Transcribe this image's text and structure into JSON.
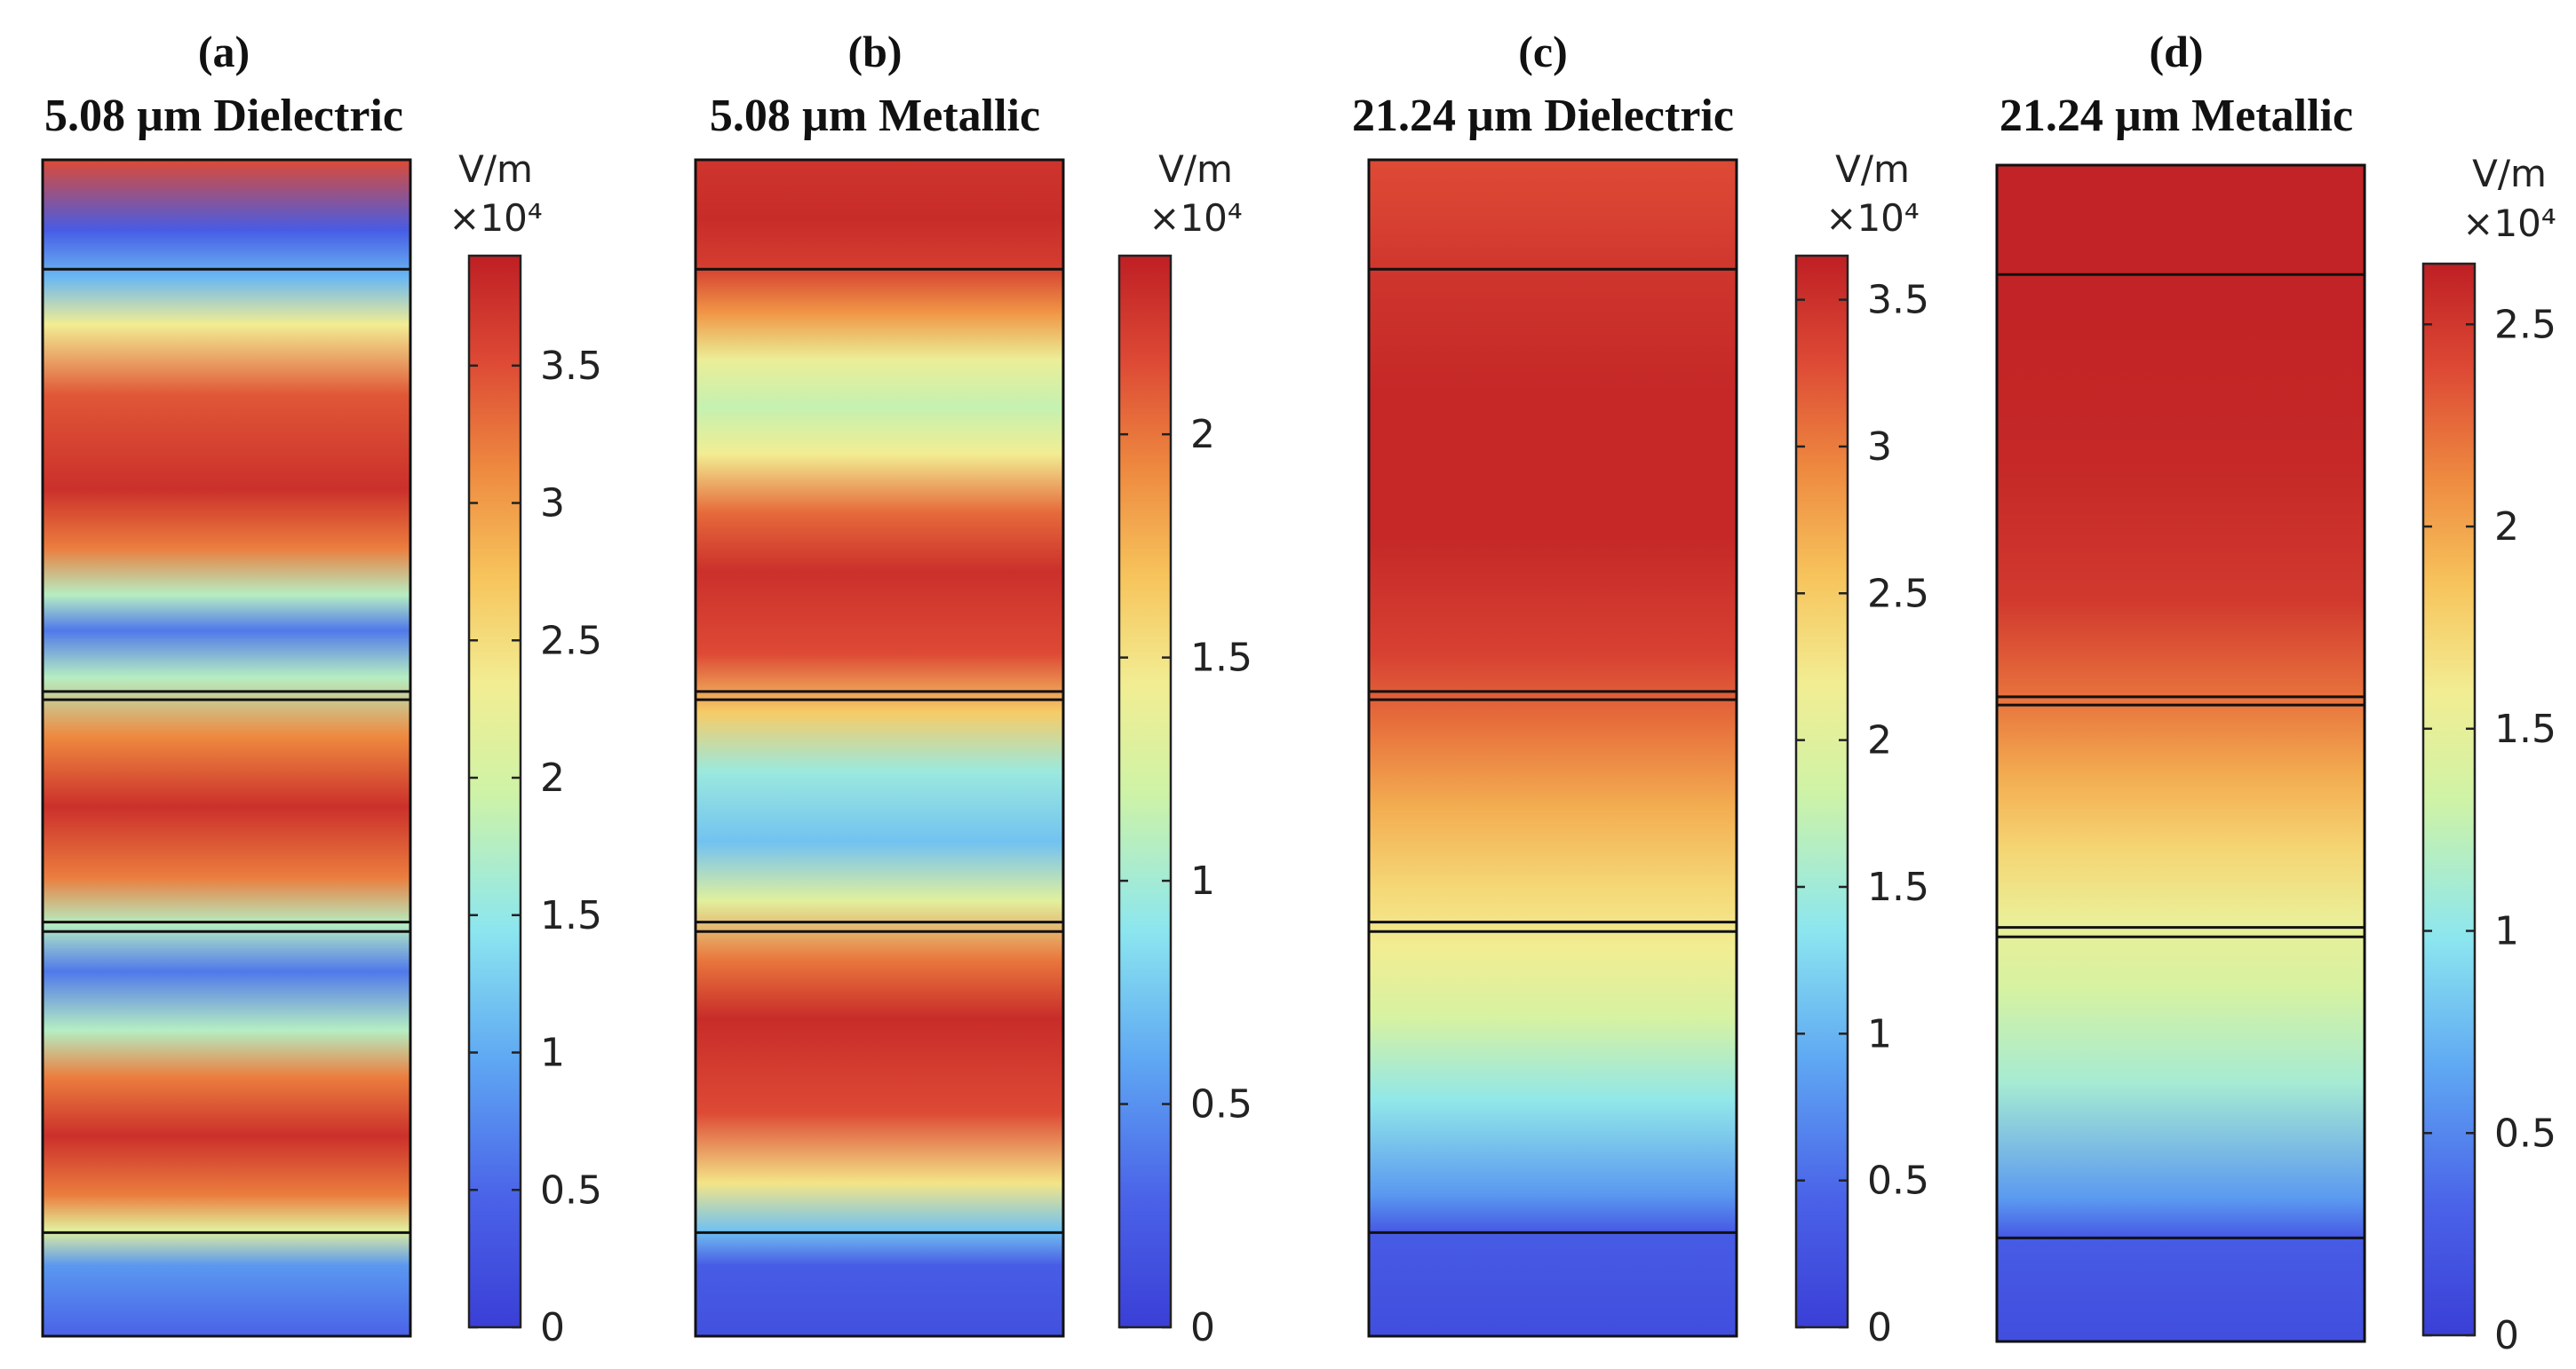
{
  "figure": {
    "colors": {
      "map_low": "#3a3fd6",
      "map_high": "#bf1f24",
      "layer_line": "#111111"
    },
    "panels": [
      {
        "id": "a",
        "letter": "(a)",
        "title": "5.08 µm Dielectric",
        "colorbar": {
          "unit": "V/m",
          "scale": "×10⁴",
          "max": 3.9,
          "ticks": [
            0,
            0.5,
            1,
            1.5,
            2,
            2.5,
            3,
            3.5
          ],
          "tick_labels": [
            "0",
            "0.5",
            "1",
            "1.5",
            "2",
            "2.5",
            "3",
            "3.5"
          ]
        },
        "field_profile": [
          [
            0,
            0.12
          ],
          [
            0.06,
            0.22
          ],
          [
            0.09,
            0.55
          ],
          [
            0.12,
            0.82
          ],
          [
            0.17,
            0.96
          ],
          [
            0.22,
            0.82
          ],
          [
            0.26,
            0.45
          ],
          [
            0.31,
            0.16
          ],
          [
            0.35,
            0.45
          ],
          [
            0.39,
            0.82
          ],
          [
            0.45,
            0.96
          ],
          [
            0.51,
            0.8
          ],
          [
            0.56,
            0.45
          ],
          [
            0.6,
            0.16
          ],
          [
            0.63,
            0.45
          ],
          [
            0.67,
            0.82
          ],
          [
            0.72,
            0.96
          ],
          [
            0.8,
            0.88
          ],
          [
            0.86,
            0.6
          ],
          [
            0.9,
            0.28
          ],
          [
            0.94,
            0.1
          ],
          [
            1,
            0.9
          ]
        ],
        "layer_boundaries": [
          0.093,
          0.452,
          0.459,
          0.648,
          0.656,
          0.912
        ]
      },
      {
        "id": "b",
        "letter": "(b)",
        "title": "5.08 µm Metallic",
        "colorbar": {
          "unit": "V/m",
          "scale": "×10⁴",
          "max": 2.4,
          "ticks": [
            0,
            0.5,
            1,
            1.5,
            2
          ],
          "tick_labels": [
            "0",
            "0.5",
            "1",
            "1.5",
            "2"
          ]
        },
        "field_profile": [
          [
            0,
            0.06
          ],
          [
            0.06,
            0.1
          ],
          [
            0.09,
            0.3
          ],
          [
            0.13,
            0.62
          ],
          [
            0.19,
            0.9
          ],
          [
            0.27,
            0.97
          ],
          [
            0.32,
            0.83
          ],
          [
            0.37,
            0.55
          ],
          [
            0.42,
            0.3
          ],
          [
            0.48,
            0.4
          ],
          [
            0.53,
            0.68
          ],
          [
            0.58,
            0.9
          ],
          [
            0.65,
            0.96
          ],
          [
            0.7,
            0.85
          ],
          [
            0.75,
            0.6
          ],
          [
            0.79,
            0.48
          ],
          [
            0.83,
            0.58
          ],
          [
            0.87,
            0.78
          ],
          [
            0.91,
            0.93
          ],
          [
            0.95,
            0.97
          ],
          [
            1,
            0.95
          ]
        ],
        "layer_boundaries": [
          0.093,
          0.452,
          0.459,
          0.648,
          0.656,
          0.912
        ]
      },
      {
        "id": "c",
        "letter": "(c)",
        "title": "21.24 µm Dielectric",
        "colorbar": {
          "unit": "V/m",
          "scale": "×10⁴",
          "max": 3.65,
          "ticks": [
            0,
            0.5,
            1,
            1.5,
            2,
            2.5,
            3,
            3.5
          ],
          "tick_labels": [
            "0",
            "0.5",
            "1",
            "1.5",
            "2",
            "2.5",
            "3",
            "3.5"
          ]
        },
        "field_profile": [
          [
            0,
            0.05
          ],
          [
            0.09,
            0.1
          ],
          [
            0.12,
            0.22
          ],
          [
            0.2,
            0.38
          ],
          [
            0.27,
            0.52
          ],
          [
            0.33,
            0.6
          ],
          [
            0.38,
            0.65
          ],
          [
            0.45,
            0.74
          ],
          [
            0.52,
            0.84
          ],
          [
            0.58,
            0.92
          ],
          [
            0.68,
            0.98
          ],
          [
            0.8,
            0.98
          ],
          [
            0.9,
            0.95
          ],
          [
            0.95,
            0.92
          ],
          [
            1,
            0.9
          ]
        ],
        "layer_boundaries": [
          0.093,
          0.452,
          0.459,
          0.648,
          0.656,
          0.912
        ]
      },
      {
        "id": "d",
        "letter": "(d)",
        "title": "21.24 µm Metallic",
        "colorbar": {
          "unit": "V/m",
          "scale": "×10⁴",
          "max": 2.65,
          "ticks": [
            0,
            0.5,
            1,
            1.5,
            2,
            2.5
          ],
          "tick_labels": [
            "0",
            "0.5",
            "1",
            "1.5",
            "2",
            "2.5"
          ]
        },
        "field_profile": [
          [
            0,
            0.05
          ],
          [
            0.09,
            0.1
          ],
          [
            0.12,
            0.22
          ],
          [
            0.22,
            0.42
          ],
          [
            0.3,
            0.52
          ],
          [
            0.36,
            0.58
          ],
          [
            0.42,
            0.66
          ],
          [
            0.48,
            0.74
          ],
          [
            0.55,
            0.84
          ],
          [
            0.63,
            0.94
          ],
          [
            0.75,
            0.98
          ],
          [
            0.88,
            0.99
          ],
          [
            1,
            0.99
          ]
        ],
        "layer_boundaries": [
          0.093,
          0.452,
          0.459,
          0.648,
          0.656,
          0.912
        ]
      }
    ]
  }
}
